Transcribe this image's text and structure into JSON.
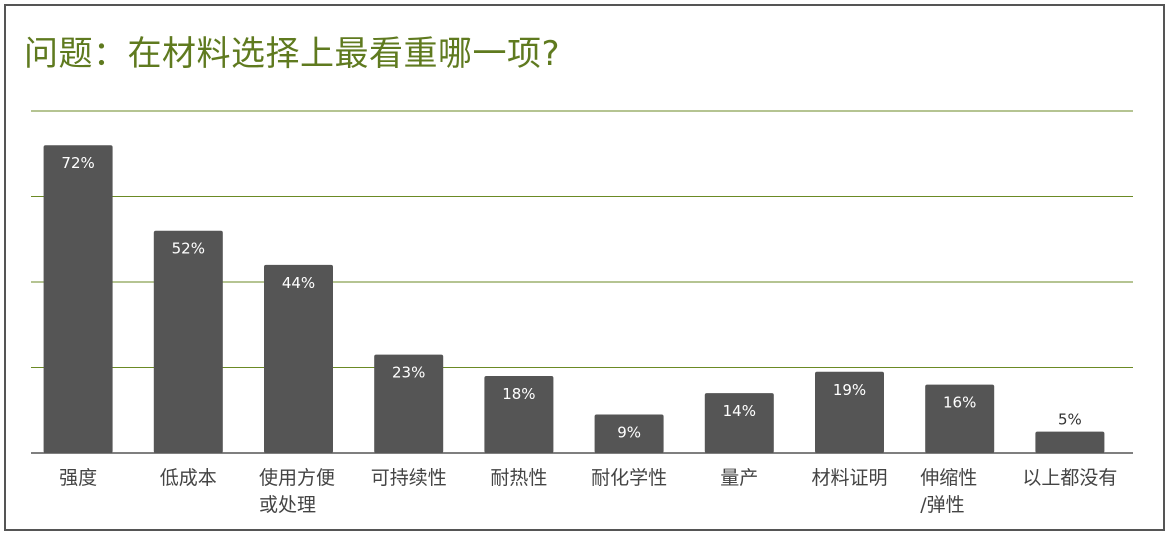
{
  "chart_data": {
    "type": "bar",
    "title": "问题：在材料选择上最看重哪一项?",
    "categories": [
      [
        "强度"
      ],
      [
        "低成本"
      ],
      [
        "使用方便",
        "或处理"
      ],
      [
        "可持续性"
      ],
      [
        "耐热性"
      ],
      [
        "耐化学性"
      ],
      [
        "量产"
      ],
      [
        "材料证明"
      ],
      [
        "伸缩性",
        "/弹性"
      ],
      [
        "以上都没有"
      ]
    ],
    "values": [
      72,
      52,
      44,
      23,
      18,
      9,
      14,
      19,
      16,
      5
    ],
    "value_labels": [
      "72%",
      "52%",
      "44%",
      "23%",
      "18%",
      "9%",
      "14%",
      "19%",
      "16%",
      "5%"
    ],
    "ylim": [
      0,
      80
    ],
    "grid": true,
    "xlabel": "",
    "ylabel": "",
    "colors": {
      "bar": "#555555",
      "grid": "#6b8a24",
      "title": "#5f7a1f"
    }
  }
}
